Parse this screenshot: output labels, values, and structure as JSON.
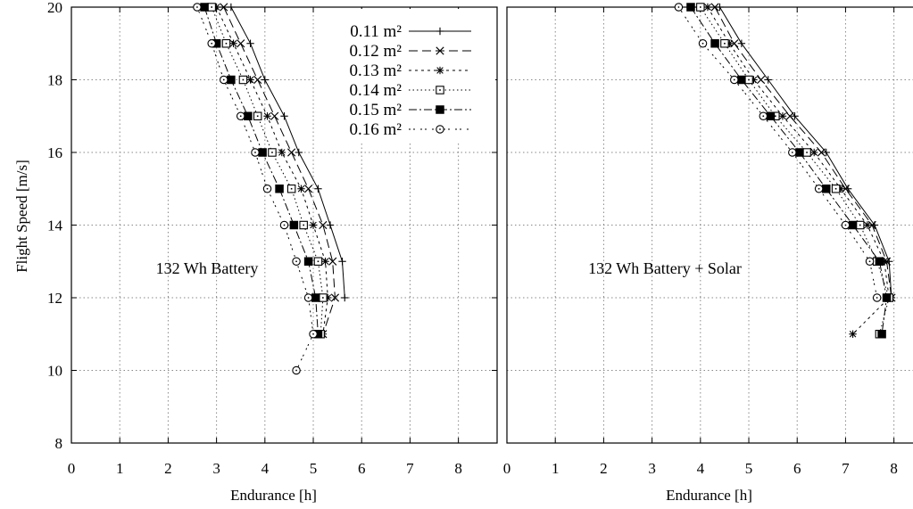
{
  "chart_data": [
    {
      "type": "line",
      "annotation": "132 Wh Battery",
      "xlabel": "Endurance [h]",
      "ylabel": "Flight Speed [m/s]",
      "xlim": [
        0,
        8.8
      ],
      "ylim": [
        8,
        20
      ],
      "xticks": [
        "0",
        "1",
        "2",
        "3",
        "4",
        "5",
        "6",
        "7",
        "8"
      ],
      "yticks": [
        "8",
        "10",
        "12",
        "14",
        "16",
        "18",
        "20"
      ],
      "grid": true,
      "legend_position": "top-right",
      "series": [
        {
          "name": "0.11 m²",
          "marker": "plus",
          "dash": "",
          "x": [
            3.3,
            3.7,
            4.0,
            4.4,
            4.7,
            5.1,
            5.35,
            5.6,
            5.65
          ],
          "y": [
            20,
            19,
            18,
            17,
            16,
            15,
            14,
            13,
            12
          ]
        },
        {
          "name": "0.12 m²",
          "marker": "cross",
          "dash": "10 5",
          "x": [
            3.15,
            3.5,
            3.85,
            4.2,
            4.55,
            4.9,
            5.2,
            5.4,
            5.45,
            5.2
          ],
          "y": [
            20,
            19,
            18,
            17,
            16,
            15,
            14,
            13,
            12,
            11
          ]
        },
        {
          "name": "0.13 m²",
          "marker": "star",
          "dash": "3 4",
          "x": [
            3.0,
            3.35,
            3.7,
            4.05,
            4.35,
            4.75,
            5.0,
            5.25,
            5.3,
            5.2
          ],
          "y": [
            20,
            19,
            18,
            17,
            16,
            15,
            14,
            13,
            12,
            11
          ]
        },
        {
          "name": "0.14 m²",
          "marker": "open-square",
          "dash": "1.5 3",
          "x": [
            2.9,
            3.2,
            3.55,
            3.85,
            4.15,
            4.55,
            4.8,
            5.1,
            5.2,
            5.15
          ],
          "y": [
            20,
            19,
            18,
            17,
            16,
            15,
            14,
            13,
            12,
            11
          ]
        },
        {
          "name": "0.15 m²",
          "marker": "filled-square",
          "dash": "9 3 2 3",
          "x": [
            2.75,
            3.0,
            3.3,
            3.65,
            3.95,
            4.3,
            4.6,
            4.9,
            5.05,
            5.1
          ],
          "y": [
            20,
            19,
            18,
            17,
            16,
            15,
            14,
            13,
            12,
            11
          ]
        },
        {
          "name": "0.16 m²",
          "marker": "open-circle",
          "dash": "2 3 2 6",
          "x": [
            2.6,
            2.9,
            3.15,
            3.5,
            3.8,
            4.05,
            4.4,
            4.65,
            4.9,
            5.0,
            4.65
          ],
          "y": [
            20,
            19,
            18,
            17,
            16,
            15,
            14,
            13,
            12,
            11,
            10
          ]
        }
      ]
    },
    {
      "type": "line",
      "annotation": "132 Wh Battery + Solar",
      "xlabel": "Endurance [h]",
      "ylabel": "",
      "xlim": [
        0,
        8.8
      ],
      "ylim": [
        8,
        20
      ],
      "xticks": [
        "0",
        "1",
        "2",
        "3",
        "4",
        "5",
        "6",
        "7",
        "8"
      ],
      "grid": true,
      "series": [
        {
          "name": "0.11 m²",
          "marker": "plus",
          "dash": "",
          "x": [
            4.4,
            4.85,
            5.4,
            5.95,
            6.6,
            7.05,
            7.6,
            7.9,
            7.95
          ],
          "y": [
            20,
            19,
            18,
            17,
            16,
            15,
            14,
            13,
            12
          ]
        },
        {
          "name": "0.12 m²",
          "marker": "cross",
          "dash": "10 5",
          "x": [
            4.3,
            4.7,
            5.25,
            5.85,
            6.5,
            7.0,
            7.55,
            7.85,
            7.95
          ],
          "y": [
            20,
            19,
            18,
            17,
            16,
            15,
            14,
            13,
            12
          ]
        },
        {
          "name": "0.13 m²",
          "marker": "star",
          "dash": "3 4",
          "x": [
            4.15,
            4.6,
            5.1,
            5.7,
            6.35,
            6.9,
            7.45,
            7.8,
            7.9,
            7.15
          ],
          "y": [
            20,
            19,
            18,
            17,
            16,
            15,
            14,
            13,
            12,
            11
          ]
        },
        {
          "name": "0.14 m²",
          "marker": "open-square",
          "dash": "1.5 3",
          "x": [
            4.0,
            4.5,
            5.0,
            5.55,
            6.2,
            6.8,
            7.3,
            7.65,
            7.9,
            7.7
          ],
          "y": [
            20,
            19,
            18,
            17,
            16,
            15,
            14,
            13,
            12,
            11
          ]
        },
        {
          "name": "0.15 m²",
          "marker": "filled-square",
          "dash": "9 3 2 3",
          "x": [
            3.8,
            4.3,
            4.85,
            5.45,
            6.05,
            6.6,
            7.15,
            7.7,
            7.85,
            7.75
          ],
          "y": [
            20,
            19,
            18,
            17,
            16,
            15,
            14,
            13,
            12,
            11
          ]
        },
        {
          "name": "0.16 m²",
          "marker": "open-circle",
          "dash": "2 3 2 6",
          "x": [
            3.55,
            4.05,
            4.7,
            5.3,
            5.9,
            6.45,
            7.0,
            7.5,
            7.65
          ],
          "y": [
            20,
            19,
            18,
            17,
            16,
            15,
            14,
            13,
            12
          ]
        }
      ]
    }
  ]
}
